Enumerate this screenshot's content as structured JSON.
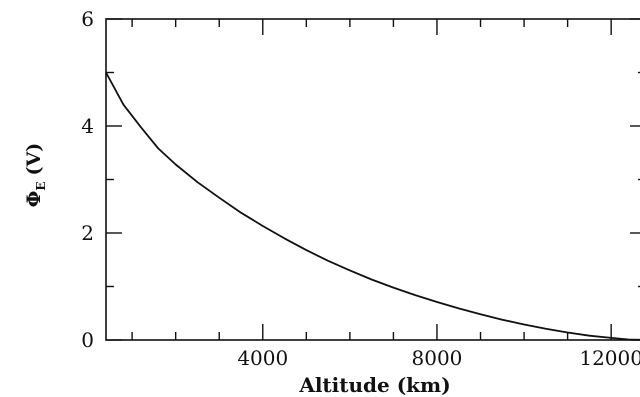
{
  "chart_data": {
    "type": "line",
    "title": "",
    "xlabel": "Altitude (km)",
    "ylabel": {
      "main": "Φ",
      "subscript": "E",
      "unit": "(V)"
    },
    "xlim": [
      400,
      12800
    ],
    "ylim": [
      0,
      6
    ],
    "xticks": [
      4000,
      8000,
      12000
    ],
    "xtick_labels": [
      "4000",
      "8000",
      "12000"
    ],
    "yticks": [
      0,
      2,
      4,
      6
    ],
    "ytick_labels": [
      "0",
      "2",
      "4",
      "6"
    ],
    "grid": false,
    "series": [
      {
        "x": [
          400,
          800,
          1200,
          1600,
          2000,
          2500,
          3000,
          3500,
          4000,
          4500,
          5000,
          5500,
          6000,
          6500,
          7000,
          7500,
          8000,
          8500,
          9000,
          9500,
          10000,
          10500,
          11000,
          11500,
          12000,
          12400,
          12800
        ],
        "y": [
          5.0,
          4.4,
          3.98,
          3.58,
          3.28,
          2.95,
          2.66,
          2.38,
          2.13,
          1.9,
          1.68,
          1.48,
          1.3,
          1.13,
          0.98,
          0.84,
          0.71,
          0.59,
          0.48,
          0.38,
          0.29,
          0.21,
          0.14,
          0.08,
          0.04,
          0.01,
          0.0
        ]
      }
    ],
    "color": "#111111"
  }
}
